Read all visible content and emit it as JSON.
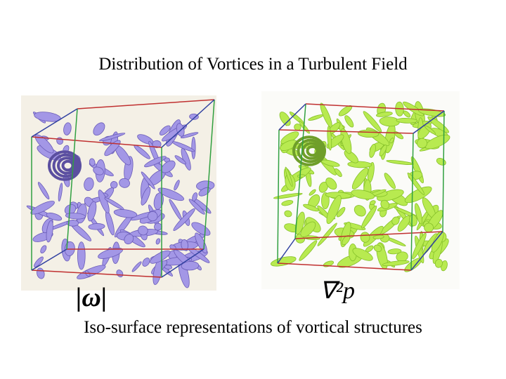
{
  "slide": {
    "title": "Distribution of Vortices in a Turbulent Field",
    "figures": [
      {
        "label": "|ω|"
      },
      {
        "label": "∇²p"
      }
    ],
    "caption": "Iso-surface representations of vortical structures"
  }
}
